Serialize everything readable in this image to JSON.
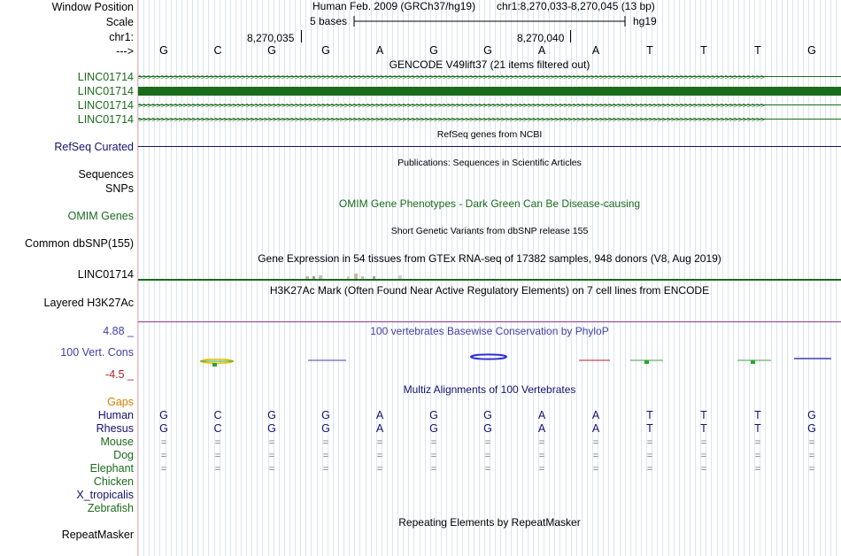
{
  "colors": {
    "gencode": "#1a6b1a",
    "refseq": "#12126e",
    "omim": "#1a6b1a",
    "gtex_line": "#1a6b1a",
    "h3k27ac": "#8b3a8b",
    "phylop_blue": "#3f3fa8",
    "phylop_red": "#b02020",
    "gaps": "#d08000",
    "species": "#12126e",
    "species_green": "#1a6b1a"
  },
  "header": {
    "window_position_label": "Window Position",
    "assembly_text": "Human Feb. 2009 (GRCh37/hg19)",
    "position_text": "chr1:8,270,033-8,270,045 (13 bp)",
    "scale_label": "Scale",
    "scale_text": "5 bases",
    "scale_db": "hg19",
    "chrom_label": "chr1:",
    "coord_1": "8,270,035",
    "coord_2": "8,270,040",
    "strand_label": "--->"
  },
  "sequence": [
    "G",
    "C",
    "G",
    "G",
    "A",
    "G",
    "G",
    "A",
    "A",
    "T",
    "T",
    "T",
    "G"
  ],
  "tracks": {
    "gencode": {
      "title": "GENCODE V49lift37 (21 items filtered out)",
      "items": [
        "LINC01714",
        "LINC01714",
        "LINC01714",
        "LINC01714"
      ]
    },
    "refseq": {
      "title": "RefSeq genes from NCBI",
      "label": "RefSeq Curated"
    },
    "publications": {
      "title": "Publications: Sequences in Scientific Articles",
      "label_1": "Sequences",
      "label_2": "SNPs"
    },
    "omim": {
      "title": "OMIM Gene Phenotypes - Dark Green Can Be Disease-causing",
      "label": "OMIM Genes"
    },
    "dbsnp": {
      "title": "Short Genetic Variants from dbSNP release 155",
      "label": "Common dbSNP(155)"
    },
    "gtex": {
      "title": "Gene Expression in 54 tissues from GTEx RNA-seq of 17382 samples, 948 donors (V8, Aug 2019)",
      "label": "LINC01714"
    },
    "h3k27ac": {
      "title": "H3K27Ac Mark (Often Found Near Active Regulatory Elements) on 7 cell lines from ENCODE",
      "label": "Layered H3K27Ac"
    },
    "phylop": {
      "title": "100 vertebrates Basewise Conservation by PhyloP",
      "label": "100 Vert. Cons",
      "max_text": "4.88 _",
      "min_text": "-4.5 _"
    },
    "multiz": {
      "title": "Multiz Alignments of 100 Vertebrates",
      "gaps_label": "Gaps",
      "species": [
        {
          "name": "Human",
          "row": "seq"
        },
        {
          "name": "Rhesus",
          "row": "seq"
        },
        {
          "name": "Mouse",
          "row": "dash"
        },
        {
          "name": "Dog",
          "row": "dash"
        },
        {
          "name": "Elephant",
          "row": "dash"
        },
        {
          "name": "Chicken",
          "row": "none"
        },
        {
          "name": "X_tropicalis",
          "row": "none"
        },
        {
          "name": "Zebrafish",
          "row": "none"
        }
      ],
      "dash_char": "="
    },
    "repeatmasker": {
      "title": "Repeating Elements by RepeatMasker",
      "label": "RepeatMasker"
    }
  }
}
